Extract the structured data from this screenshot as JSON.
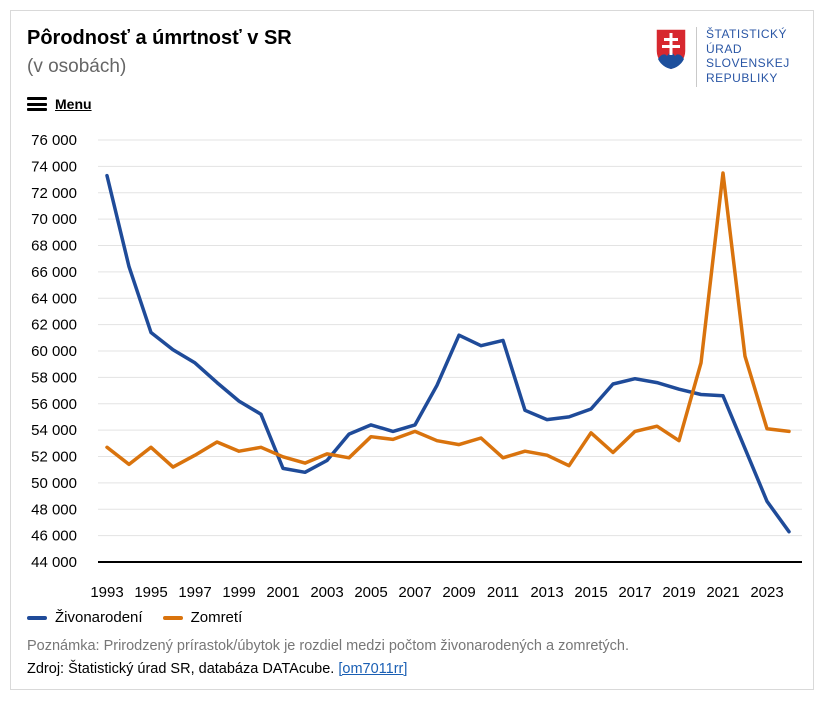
{
  "header": {
    "title": "Pôrodnosť a úmrtnosť v SR",
    "subtitle": "(v osobách)",
    "menu_label": "Menu"
  },
  "logo": {
    "line1": "ŠTATISTICKÝ",
    "line2": "ÚRAD",
    "line3": "SLOVENSKEJ",
    "line4": "REPUBLIKY"
  },
  "footer": {
    "note": "Poznámka: Prirodzený prírastok/úbytok je rozdiel medzi počtom živonarodených a zomretých.",
    "source_prefix": "Zdroj: Štatistický úrad SR, databáza DATAcube. ",
    "source_link": "[om7011rr]"
  },
  "colors": {
    "born": "#1f4b99",
    "died": "#d9730d"
  },
  "chart_data": {
    "type": "line",
    "title": "Pôrodnosť a úmrtnosť v SR",
    "subtitle": "(v osobách)",
    "x": [
      1993,
      1994,
      1995,
      1996,
      1997,
      1998,
      1999,
      2000,
      2001,
      2002,
      2003,
      2004,
      2005,
      2006,
      2007,
      2008,
      2009,
      2010,
      2011,
      2012,
      2013,
      2014,
      2015,
      2016,
      2017,
      2018,
      2019,
      2020,
      2021,
      2022,
      2023,
      2024
    ],
    "x_tick_labels": [
      "1993",
      "1995",
      "1997",
      "1999",
      "2001",
      "2003",
      "2005",
      "2007",
      "2009",
      "2011",
      "2013",
      "2015",
      "2017",
      "2019",
      "2021",
      "2023"
    ],
    "y_tick_labels": [
      "76 000",
      "74 000",
      "72 000",
      "70 000",
      "68 000",
      "66 000",
      "64 000",
      "62 000",
      "60 000",
      "58 000",
      "56 000",
      "54 000",
      "52 000",
      "50 000",
      "48 000",
      "46 000",
      "44 000"
    ],
    "ylim": [
      44000,
      76000
    ],
    "grid": true,
    "legend_position": "bottom-left",
    "series": [
      {
        "name": "Živonarodení",
        "values": [
          73300,
          66400,
          61400,
          60100,
          59100,
          57600,
          56200,
          55200,
          51100,
          50800,
          51700,
          53700,
          54400,
          53900,
          54400,
          57400,
          61200,
          60400,
          60800,
          55500,
          54800,
          55000,
          55600,
          57500,
          57900,
          57600,
          57100,
          56700,
          56600,
          52600,
          48600,
          46300
        ]
      },
      {
        "name": "Zomretí",
        "values": [
          52700,
          51400,
          52700,
          51200,
          52100,
          53100,
          52400,
          52700,
          51980,
          51500,
          52200,
          51900,
          53500,
          53300,
          53900,
          53200,
          52900,
          53400,
          51900,
          52400,
          52100,
          51300,
          53800,
          52300,
          53900,
          54300,
          53200,
          59100,
          73500,
          59600,
          54100,
          53900
        ]
      }
    ]
  }
}
